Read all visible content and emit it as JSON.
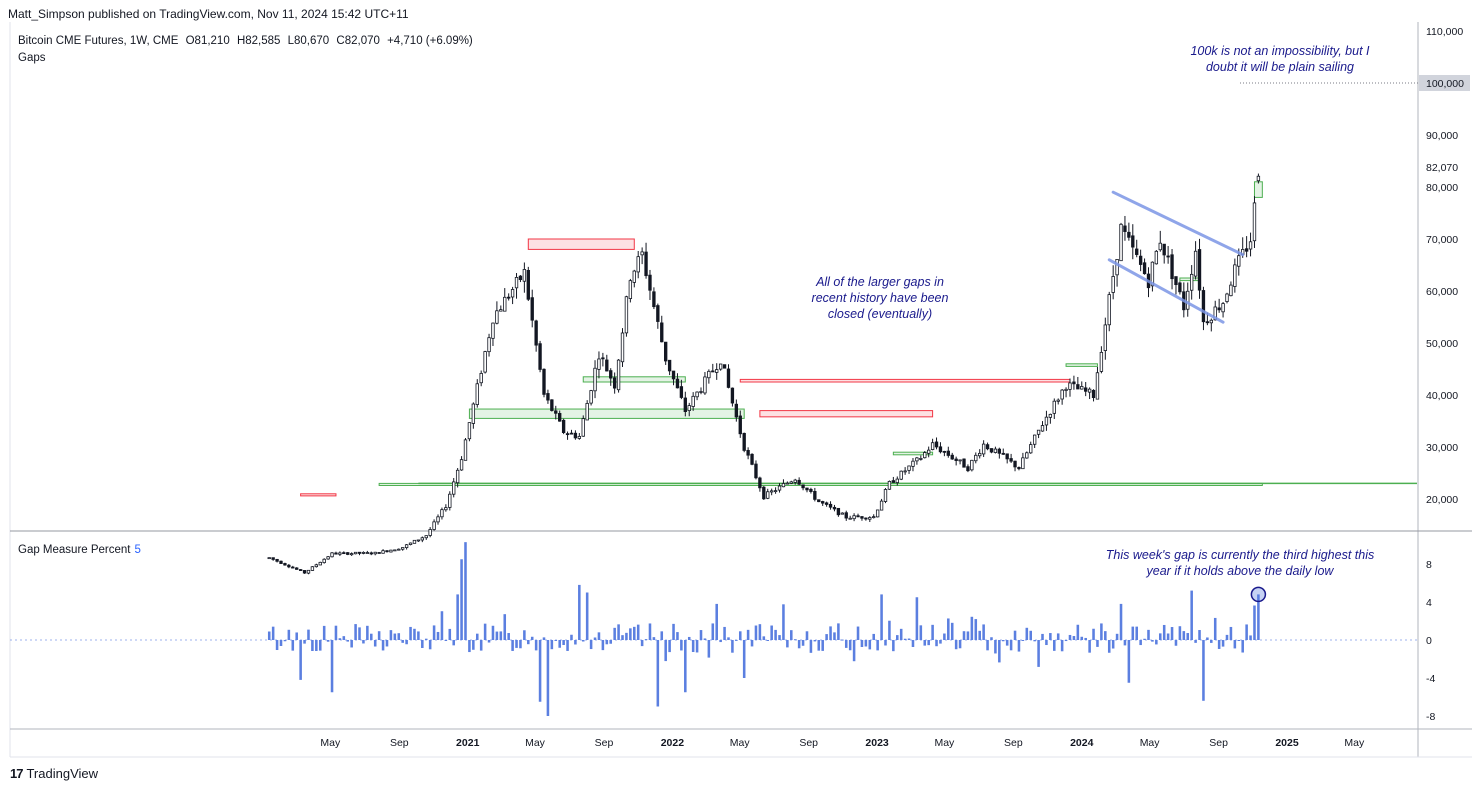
{
  "header": {
    "publisher": "Matt_Simpson published on TradingView.com, Nov 11, 2024 15:42 UTC+11",
    "symbol": "Bitcoin CME Futures, 1W, CME",
    "open": "O81,210",
    "high": "H82,585",
    "low": "L80,670",
    "close": "C82,070",
    "change": "+4,710 (+6.09%)",
    "indicator": "Gaps"
  },
  "subpane": {
    "name": "Gap Measure Percent",
    "value": "5"
  },
  "annotations": {
    "note1": "100k is not an impossibility, but I\ndoubt it will be plain sailing",
    "note2": "All of the larger gaps in\nrecent history have been\nclosed (eventually)",
    "note3": "This week's gap is currently the third highest this\nyear if it holds above the daily low"
  },
  "brand": {
    "logo": "17",
    "name": "TradingView"
  },
  "colors": {
    "bull_gap": "#4caf50",
    "bear_gap": "#f23645",
    "channel": "#7b95e5",
    "histogram": "#5b7fe0",
    "candle": "#131722"
  },
  "chart_data": [
    {
      "type": "candlestick",
      "title": "Bitcoin CME Futures, 1W, CME",
      "timeframe": "1W",
      "x_tick_labels": [
        "May",
        "Sep",
        "2021",
        "May",
        "Sep",
        "2022",
        "May",
        "Sep",
        "2023",
        "May",
        "Sep",
        "2024",
        "May",
        "Sep",
        "2025",
        "May"
      ],
      "y_tick_labels": [
        "110,000",
        "100,000",
        "90,000",
        "80,000",
        "70,000",
        "60,000",
        "50,000",
        "40,000",
        "30,000",
        "20,000"
      ],
      "ylim": [
        13000,
        112000
      ],
      "current_price": "82,070",
      "marked_level": "100,000",
      "ohlc_last": {
        "open": 81210,
        "high": 82585,
        "low": 80670,
        "close": 82070
      },
      "price_path": [
        {
          "date": "2020-01-13",
          "close": 8700
        },
        {
          "date": "2020-03-16",
          "close": 5800
        },
        {
          "date": "2020-05-04",
          "close": 9500
        },
        {
          "date": "2020-07-20",
          "close": 9600
        },
        {
          "date": "2020-09-07",
          "close": 10700
        },
        {
          "date": "2020-10-19",
          "close": 13000
        },
        {
          "date": "2020-11-23",
          "close": 18700
        },
        {
          "date": "2020-12-21",
          "close": 28000
        },
        {
          "date": "2021-01-11",
          "close": 38000
        },
        {
          "date": "2021-02-15",
          "close": 55000
        },
        {
          "date": "2021-04-12",
          "close": 63500
        },
        {
          "date": "2021-05-17",
          "close": 40000
        },
        {
          "date": "2021-06-21",
          "close": 33000
        },
        {
          "date": "2021-07-19",
          "close": 32000
        },
        {
          "date": "2021-08-23",
          "close": 48000
        },
        {
          "date": "2021-09-20",
          "close": 42000
        },
        {
          "date": "2021-10-18",
          "close": 63000
        },
        {
          "date": "2021-11-08",
          "close": 67000
        },
        {
          "date": "2021-12-20",
          "close": 47000
        },
        {
          "date": "2022-01-24",
          "close": 37000
        },
        {
          "date": "2022-03-28",
          "close": 47000
        },
        {
          "date": "2022-05-09",
          "close": 30000
        },
        {
          "date": "2022-06-13",
          "close": 20500
        },
        {
          "date": "2022-08-08",
          "close": 24000
        },
        {
          "date": "2022-09-19",
          "close": 19500
        },
        {
          "date": "2022-11-07",
          "close": 16500
        },
        {
          "date": "2022-12-26",
          "close": 16600
        },
        {
          "date": "2023-01-23",
          "close": 23000
        },
        {
          "date": "2023-03-20",
          "close": 28000
        },
        {
          "date": "2023-04-10",
          "close": 30500
        },
        {
          "date": "2023-06-12",
          "close": 26000
        },
        {
          "date": "2023-07-10",
          "close": 30500
        },
        {
          "date": "2023-09-11",
          "close": 26000
        },
        {
          "date": "2023-10-23",
          "close": 34500
        },
        {
          "date": "2023-12-04",
          "close": 42000
        },
        {
          "date": "2024-01-22",
          "close": 40000
        },
        {
          "date": "2024-02-26",
          "close": 63000
        },
        {
          "date": "2024-03-11",
          "close": 72000
        },
        {
          "date": "2024-04-29",
          "close": 62000
        },
        {
          "date": "2024-05-20",
          "close": 70000
        },
        {
          "date": "2024-07-01",
          "close": 57000
        },
        {
          "date": "2024-07-22",
          "close": 68000
        },
        {
          "date": "2024-08-05",
          "close": 54000
        },
        {
          "date": "2024-09-09",
          "close": 58000
        },
        {
          "date": "2024-09-30",
          "close": 64000
        },
        {
          "date": "2024-10-28",
          "close": 70000
        },
        {
          "date": "2024-11-11",
          "close": 82070
        }
      ],
      "gaps": [
        {
          "direction": "down",
          "from": 20600,
          "to": 21000,
          "start": "2020-03-09",
          "end": "2020-05-04"
        },
        {
          "direction": "up",
          "from": 22600,
          "to": 23000,
          "start": "2020-07-27",
          "end": "2024-11-11"
        },
        {
          "direction": "down",
          "from": 68000,
          "to": 70000,
          "start": "2021-04-19",
          "end": "2021-10-18"
        },
        {
          "direction": "up",
          "from": 35500,
          "to": 37300,
          "start": "2021-01-04",
          "end": "2022-05-02"
        },
        {
          "direction": "up",
          "from": 42500,
          "to": 43500,
          "start": "2021-07-26",
          "end": "2022-01-17"
        },
        {
          "direction": "down",
          "from": 42500,
          "to": 43000,
          "start": "2022-05-02",
          "end": "2023-12-04"
        },
        {
          "direction": "down",
          "from": 35800,
          "to": 37000,
          "start": "2022-06-06",
          "end": "2023-04-03"
        },
        {
          "direction": "up",
          "from": 28500,
          "to": 29000,
          "start": "2023-01-30",
          "end": "2023-04-03"
        },
        {
          "direction": "up",
          "from": 45500,
          "to": 46000,
          "start": "2023-12-04",
          "end": "2024-01-22"
        },
        {
          "direction": "up",
          "from": 62000,
          "to": 62500,
          "start": "2024-06-24",
          "end": "2024-07-22"
        },
        {
          "direction": "up",
          "from": 78000,
          "to": 81000,
          "start": "2024-11-04",
          "end": "2024-11-11"
        }
      ],
      "channel": [
        {
          "line": "upper",
          "from": {
            "date": "2024-02-26",
            "value": 79000
          },
          "to": {
            "date": "2024-10-14",
            "value": 67000
          }
        },
        {
          "line": "lower",
          "from": {
            "date": "2024-02-19",
            "value": 66000
          },
          "to": {
            "date": "2024-09-09",
            "value": 54000
          }
        }
      ]
    },
    {
      "type": "bar",
      "title": "Gap Measure Percent",
      "current_value": 5,
      "y_tick_labels": [
        "8",
        "4",
        "0",
        "-4",
        "-8"
      ],
      "ylim": [
        -9,
        11
      ],
      "highlight": {
        "date": "2024-11-11",
        "value": 4.8
      },
      "series_sample": [
        {
          "date": "2020-03-09",
          "value": -4.2
        },
        {
          "date": "2020-05-04",
          "value": -5.5
        },
        {
          "date": "2020-12-14",
          "value": 4.8
        },
        {
          "date": "2020-12-21",
          "value": 8.5
        },
        {
          "date": "2020-12-28",
          "value": 10.3
        },
        {
          "date": "2021-05-10",
          "value": -6.5
        },
        {
          "date": "2021-05-24",
          "value": -8.0
        },
        {
          "date": "2021-07-19",
          "value": 5.8
        },
        {
          "date": "2021-08-02",
          "value": 5.0
        },
        {
          "date": "2021-12-06",
          "value": -7.0
        },
        {
          "date": "2022-01-24",
          "value": -5.5
        },
        {
          "date": "2022-03-21",
          "value": 3.8
        },
        {
          "date": "2022-05-09",
          "value": -4.0
        },
        {
          "date": "2023-01-09",
          "value": 4.8
        },
        {
          "date": "2023-03-13",
          "value": 4.5
        },
        {
          "date": "2024-03-11",
          "value": 3.8
        },
        {
          "date": "2024-03-25",
          "value": -4.5
        },
        {
          "date": "2024-07-15",
          "value": 5.2
        },
        {
          "date": "2024-08-05",
          "value": -6.4
        },
        {
          "date": "2024-11-11",
          "value": 4.8
        }
      ]
    }
  ]
}
